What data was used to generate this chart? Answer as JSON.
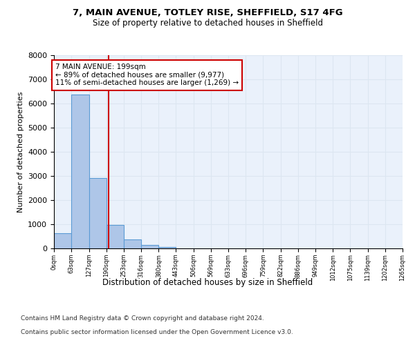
{
  "title": "7, MAIN AVENUE, TOTLEY RISE, SHEFFIELD, S17 4FG",
  "subtitle": "Size of property relative to detached houses in Sheffield",
  "xlabel": "Distribution of detached houses by size in Sheffield",
  "ylabel": "Number of detached properties",
  "bar_color": "#aec6e8",
  "bar_edge_color": "#5b9bd5",
  "grid_color": "#dce6f1",
  "background_color": "#eaf1fb",
  "vline_x": 199,
  "vline_color": "#cc0000",
  "annotation_text": "7 MAIN AVENUE: 199sqm\n← 89% of detached houses are smaller (9,977)\n11% of semi-detached houses are larger (1,269) →",
  "annotation_box_color": "#ffffff",
  "annotation_box_edge": "#cc0000",
  "bin_edges": [
    0,
    63,
    127,
    190,
    253,
    316,
    380,
    443,
    506,
    569,
    633,
    696,
    759,
    822,
    886,
    949,
    1012,
    1075,
    1139,
    1202,
    1265
  ],
  "bin_counts": [
    620,
    6380,
    2920,
    960,
    370,
    145,
    65,
    0,
    0,
    0,
    0,
    0,
    0,
    0,
    0,
    0,
    0,
    0,
    0,
    0
  ],
  "ylim": [
    0,
    8000
  ],
  "yticks": [
    0,
    1000,
    2000,
    3000,
    4000,
    5000,
    6000,
    7000,
    8000
  ],
  "footer_line1": "Contains HM Land Registry data © Crown copyright and database right 2024.",
  "footer_line2": "Contains public sector information licensed under the Open Government Licence v3.0."
}
